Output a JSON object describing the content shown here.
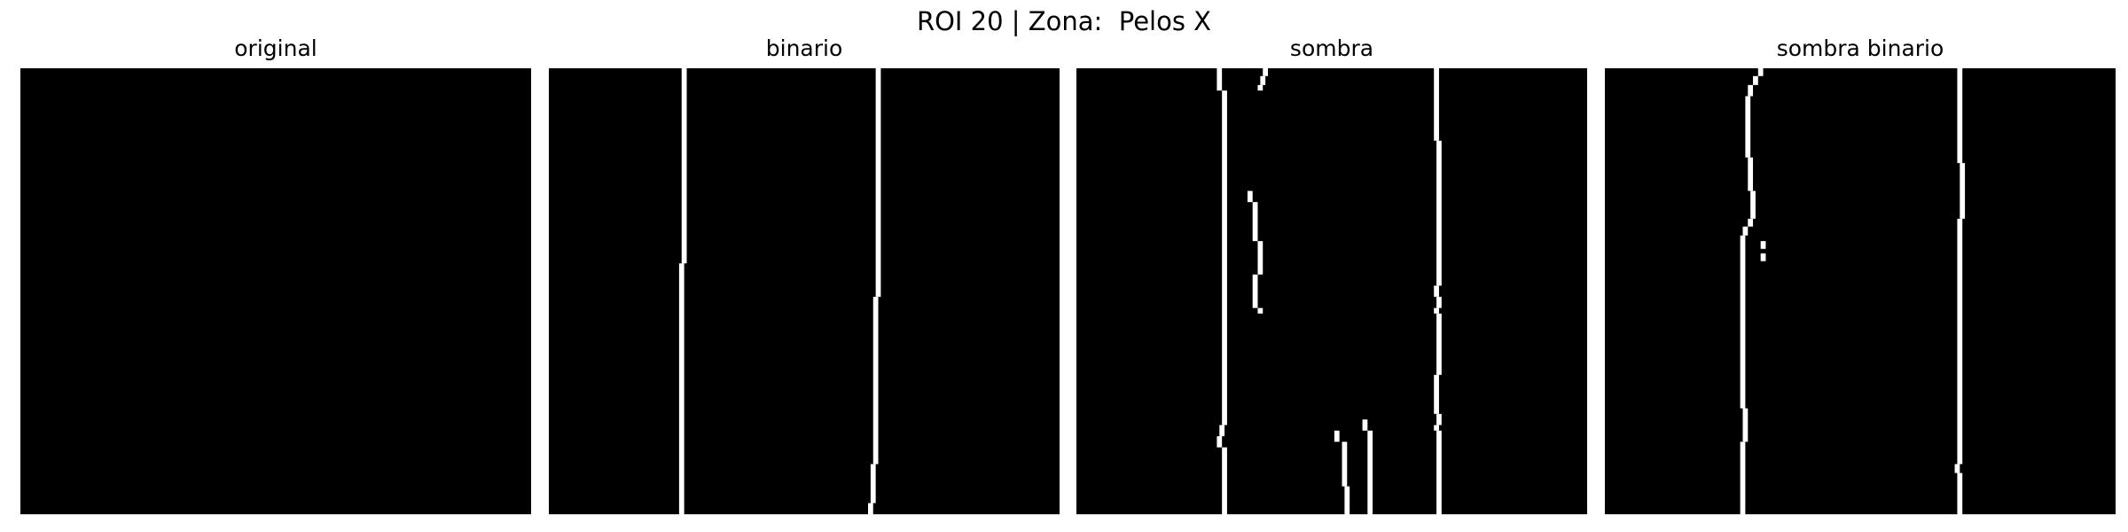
{
  "figure": {
    "title": "ROI 20 | Zona:  Pelos X"
  },
  "panels": [
    {
      "title": "original",
      "strokes": []
    },
    {
      "title": "binario",
      "strokes": [
        {
          "c": 26.5,
          "y0": 0,
          "y1": 17.5
        },
        {
          "c": 26.0,
          "y0": 17.5,
          "y1": 40
        },
        {
          "c": 64.5,
          "y0": 0,
          "y1": 20.5
        },
        {
          "c": 64.0,
          "y0": 20.5,
          "y1": 35.5
        },
        {
          "c": 63.5,
          "y0": 35.5,
          "y1": 39
        },
        {
          "c": 63.0,
          "y0": 39,
          "y1": 40
        }
      ]
    },
    {
      "title": "sombra",
      "strokes": [
        {
          "c": 28.0,
          "y0": 0,
          "y1": 2.0
        },
        {
          "c": 29.0,
          "y0": 2.0,
          "y1": 32.0
        },
        {
          "c": 28.5,
          "y0": 32.0,
          "y1": 33.0
        },
        {
          "c": 28.0,
          "y0": 33.0,
          "y1": 34.0
        },
        {
          "c": 29.0,
          "y0": 34.0,
          "y1": 40
        },
        {
          "c": 37.0,
          "y0": 0,
          "y1": 0.7
        },
        {
          "c": 36.5,
          "y0": 0.7,
          "y1": 1.5
        },
        {
          "c": 36.0,
          "y0": 1.5,
          "y1": 2.0
        },
        {
          "c": 34.0,
          "y0": 11.0,
          "y1": 12.0
        },
        {
          "c": 35.0,
          "y0": 12.0,
          "y1": 15.5
        },
        {
          "c": 36.0,
          "y0": 15.5,
          "y1": 18.5
        },
        {
          "c": 35.0,
          "y0": 18.5,
          "y1": 21.5
        },
        {
          "c": 36.0,
          "y0": 21.5,
          "y1": 22.0
        },
        {
          "c": 51.0,
          "y0": 32.5,
          "y1": 33.5
        },
        {
          "c": 52.5,
          "y0": 33.5,
          "y1": 37.5
        },
        {
          "c": 53.0,
          "y0": 37.5,
          "y1": 40
        },
        {
          "c": 56.5,
          "y0": 31.5,
          "y1": 32.5
        },
        {
          "c": 57.5,
          "y0": 32.5,
          "y1": 40
        },
        {
          "c": 70.5,
          "y0": 0,
          "y1": 6.5
        },
        {
          "c": 71.0,
          "y0": 6.5,
          "y1": 19.5
        },
        {
          "c": 70.5,
          "y0": 19.5,
          "y1": 20.5
        },
        {
          "c": 71.0,
          "y0": 20.5,
          "y1": 21.5
        },
        {
          "c": 70.5,
          "y0": 21.5,
          "y1": 22.0
        },
        {
          "c": 71.0,
          "y0": 22.0,
          "y1": 27.5
        },
        {
          "c": 70.5,
          "y0": 27.5,
          "y1": 31.0
        },
        {
          "c": 71.0,
          "y0": 31.0,
          "y1": 32.0
        },
        {
          "c": 70.5,
          "y0": 32.0,
          "y1": 32.5
        },
        {
          "c": 71.0,
          "y0": 32.5,
          "y1": 40
        }
      ]
    },
    {
      "title": "sombra binario",
      "strokes": [
        {
          "c": 30.5,
          "y0": 0,
          "y1": 0.7
        },
        {
          "c": 29.5,
          "y0": 0.7,
          "y1": 1.5
        },
        {
          "c": 28.5,
          "y0": 1.5,
          "y1": 2.5
        },
        {
          "c": 28.0,
          "y0": 2.5,
          "y1": 8.0
        },
        {
          "c": 28.5,
          "y0": 8.0,
          "y1": 11.0
        },
        {
          "c": 29.0,
          "y0": 11.0,
          "y1": 13.5
        },
        {
          "c": 28.5,
          "y0": 13.5,
          "y1": 14.2
        },
        {
          "c": 27.5,
          "y0": 14.2,
          "y1": 15.0
        },
        {
          "c": 27.0,
          "y0": 15.0,
          "y1": 30.5
        },
        {
          "c": 27.5,
          "y0": 30.5,
          "y1": 33.5
        },
        {
          "c": 27.0,
          "y0": 33.5,
          "y1": 40
        },
        {
          "c": 31.0,
          "y0": 15.5,
          "y1": 16.2
        },
        {
          "c": 31.0,
          "y0": 16.6,
          "y1": 17.3
        },
        {
          "c": 69.5,
          "y0": 0,
          "y1": 8.5
        },
        {
          "c": 70.0,
          "y0": 8.5,
          "y1": 13.5
        },
        {
          "c": 69.5,
          "y0": 13.5,
          "y1": 35.5
        },
        {
          "c": 69.0,
          "y0": 35.5,
          "y1": 36.3
        },
        {
          "c": 69.5,
          "y0": 36.3,
          "y1": 40
        }
      ]
    }
  ]
}
